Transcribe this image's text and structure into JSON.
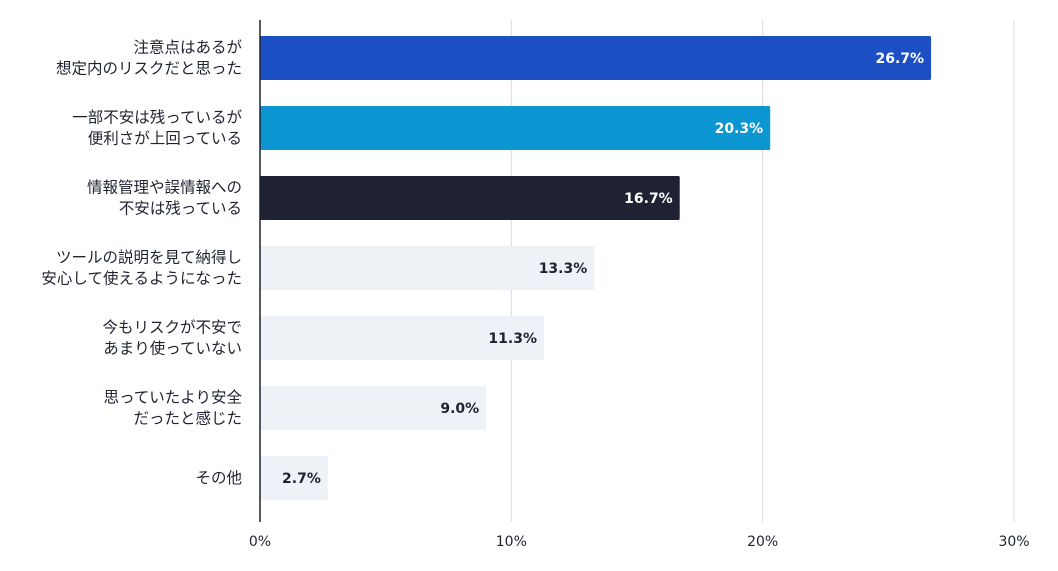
{
  "chart_data": {
    "type": "bar",
    "orientation": "horizontal",
    "categories": [
      [
        "注意点はあるが",
        "想定内のリスクだと思った"
      ],
      [
        "一部不安は残っているが",
        "便利さが上回っている"
      ],
      [
        "情報管理や誤情報への",
        "不安は残っている"
      ],
      [
        "ツールの説明を見て納得し",
        "安心して使えるようになった"
      ],
      [
        "今もリスクが不安で",
        "あまり使っていない"
      ],
      [
        "思っていたより安全",
        "だったと感じた"
      ],
      [
        "その他"
      ]
    ],
    "values": [
      26.7,
      20.3,
      16.7,
      13.3,
      11.3,
      9.0,
      2.7
    ],
    "value_labels": [
      "26.7%",
      "20.3%",
      "16.7%",
      "13.3%",
      "11.3%",
      "9.0%",
      "2.7%"
    ],
    "bar_colors": [
      "#1d4fc4",
      "#0b96d2",
      "#1f2233",
      "#eef1f6",
      "#eef1f6",
      "#eef1f6",
      "#eef1f6"
    ],
    "label_colors": [
      "#ffffff",
      "#ffffff",
      "#ffffff",
      "#1f2330",
      "#1f2330",
      "#1f2330",
      "#1f2330"
    ],
    "xlim": [
      0,
      30
    ],
    "xticks": [
      0,
      10,
      20,
      30
    ],
    "xtick_labels": [
      "0%",
      "10%",
      "20%",
      "30%"
    ],
    "grid": true,
    "title": "",
    "xlabel": "",
    "ylabel": ""
  }
}
